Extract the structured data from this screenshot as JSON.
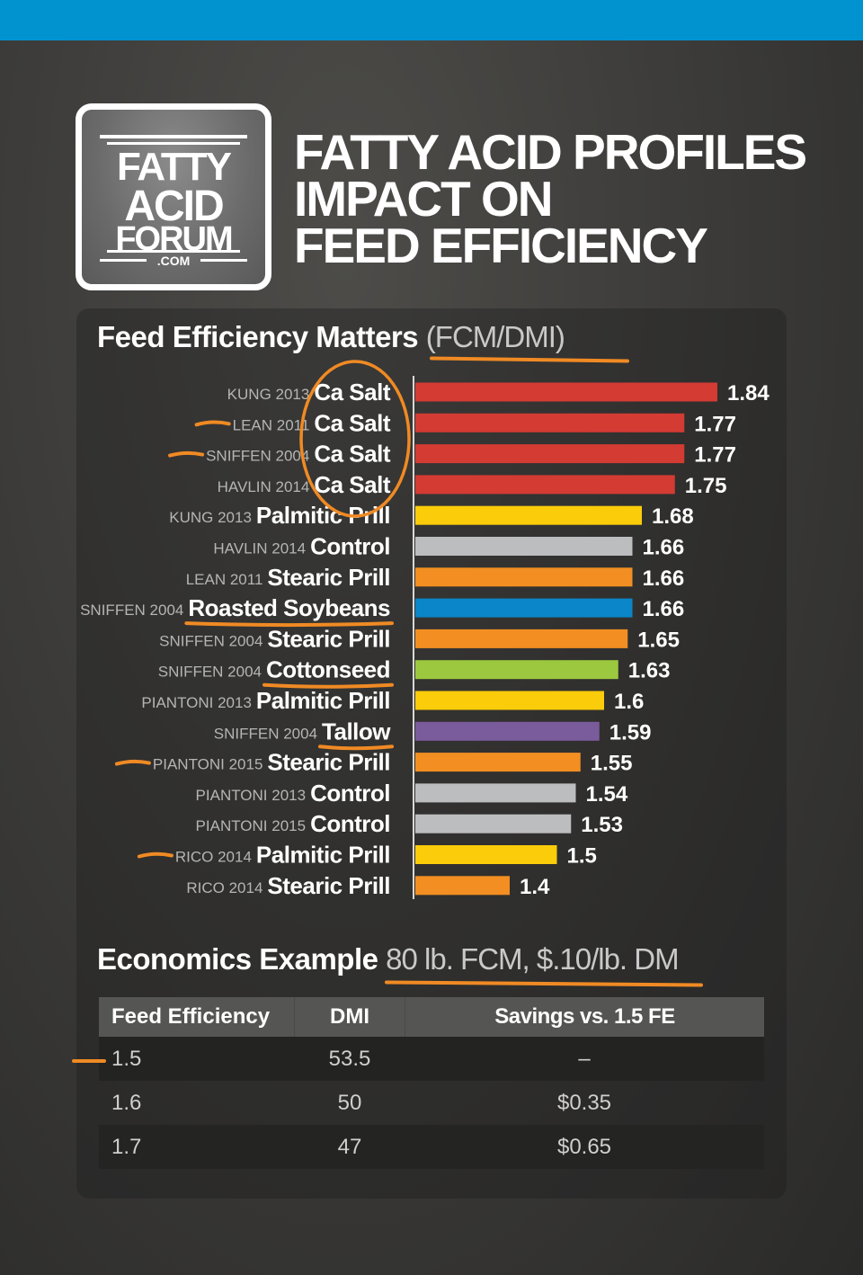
{
  "header": {
    "logo_lines": [
      "FATTY",
      "ACID",
      "FORUM",
      ".COM"
    ],
    "title_lines": [
      "FATTY ACID PROFILES",
      "IMPACT ON",
      "FEED EFFICIENCY"
    ],
    "band_color": "#0093d0"
  },
  "chart_section": {
    "title": "Feed Efficiency Matters",
    "subtitle": "(FCM/DMI)"
  },
  "chart_data": {
    "type": "bar",
    "orientation": "horizontal",
    "title": "Feed Efficiency Matters (FCM/DMI)",
    "xlabel": "",
    "ylabel": "",
    "xlim": [
      1.2,
      1.84
    ],
    "grid": false,
    "legend": "none",
    "categories": [
      {
        "study": "KUNG 2013",
        "fat": "Ca Salt",
        "value": 1.84,
        "label": "1.84",
        "color": "#d33b33"
      },
      {
        "study": "LEAN 2011",
        "fat": "Ca Salt",
        "value": 1.77,
        "label": "1.77",
        "color": "#d33b33"
      },
      {
        "study": "SNIFFEN 2004",
        "fat": "Ca Salt",
        "value": 1.77,
        "label": "1.77",
        "color": "#d33b33"
      },
      {
        "study": "HAVLIN 2014",
        "fat": "Ca Salt",
        "value": 1.75,
        "label": "1.75",
        "color": "#d33b33"
      },
      {
        "study": "KUNG 2013",
        "fat": "Palmitic Prill",
        "value": 1.68,
        "label": "1.68",
        "color": "#fbcc0a"
      },
      {
        "study": "HAVLIN 2014",
        "fat": "Control",
        "value": 1.66,
        "label": "1.66",
        "color": "#bcbdbf"
      },
      {
        "study": "LEAN 2011",
        "fat": "Stearic Prill",
        "value": 1.66,
        "label": "1.66",
        "color": "#f28e22"
      },
      {
        "study": "SNIFFEN 2004",
        "fat": "Roasted Soybeans",
        "value": 1.66,
        "label": "1.66",
        "color": "#0a86c9"
      },
      {
        "study": "SNIFFEN 2004",
        "fat": "Stearic Prill",
        "value": 1.65,
        "label": "1.65",
        "color": "#f28e22"
      },
      {
        "study": "SNIFFEN 2004",
        "fat": "Cottonseed",
        "value": 1.63,
        "label": "1.63",
        "color": "#9cc83f"
      },
      {
        "study": "PIANTONI 2013",
        "fat": "Palmitic Prill",
        "value": 1.6,
        "label": "1.6",
        "color": "#fbcc0a"
      },
      {
        "study": "SNIFFEN 2004",
        "fat": "Tallow",
        "value": 1.59,
        "label": "1.59",
        "color": "#7a5b9b"
      },
      {
        "study": "PIANTONI 2015",
        "fat": "Stearic Prill",
        "value": 1.55,
        "label": "1.55",
        "color": "#f28e22"
      },
      {
        "study": "PIANTONI 2013",
        "fat": "Control",
        "value": 1.54,
        "label": "1.54",
        "color": "#bcbdbf"
      },
      {
        "study": "PIANTONI 2015",
        "fat": "Control",
        "value": 1.53,
        "label": "1.53",
        "color": "#bcbdbf"
      },
      {
        "study": "RICO 2014",
        "fat": "Palmitic Prill",
        "value": 1.5,
        "label": "1.5",
        "color": "#fbcc0a"
      },
      {
        "study": "RICO 2014",
        "fat": "Stearic Prill",
        "value": 1.4,
        "label": "1.4",
        "color": "#f28e22"
      }
    ],
    "annotations": {
      "highlight_color": "#f08a24",
      "circled_rows": [
        0,
        1,
        2,
        3
      ],
      "dashed_rows": [
        1,
        2,
        12,
        15
      ],
      "underlined_rows": [
        7,
        9,
        11
      ]
    }
  },
  "economics": {
    "title": "Economics Example",
    "subtitle": "80 lb. FCM, $.10/lb. DM",
    "columns": [
      "Feed Efficiency",
      "DMI",
      "Savings vs. 1.5 FE"
    ],
    "rows": [
      [
        "1.5",
        "53.5",
        "–"
      ],
      [
        "1.6",
        "50",
        "$0.35"
      ],
      [
        "1.7",
        "47",
        "$0.65"
      ]
    ],
    "marked_row": 0
  }
}
